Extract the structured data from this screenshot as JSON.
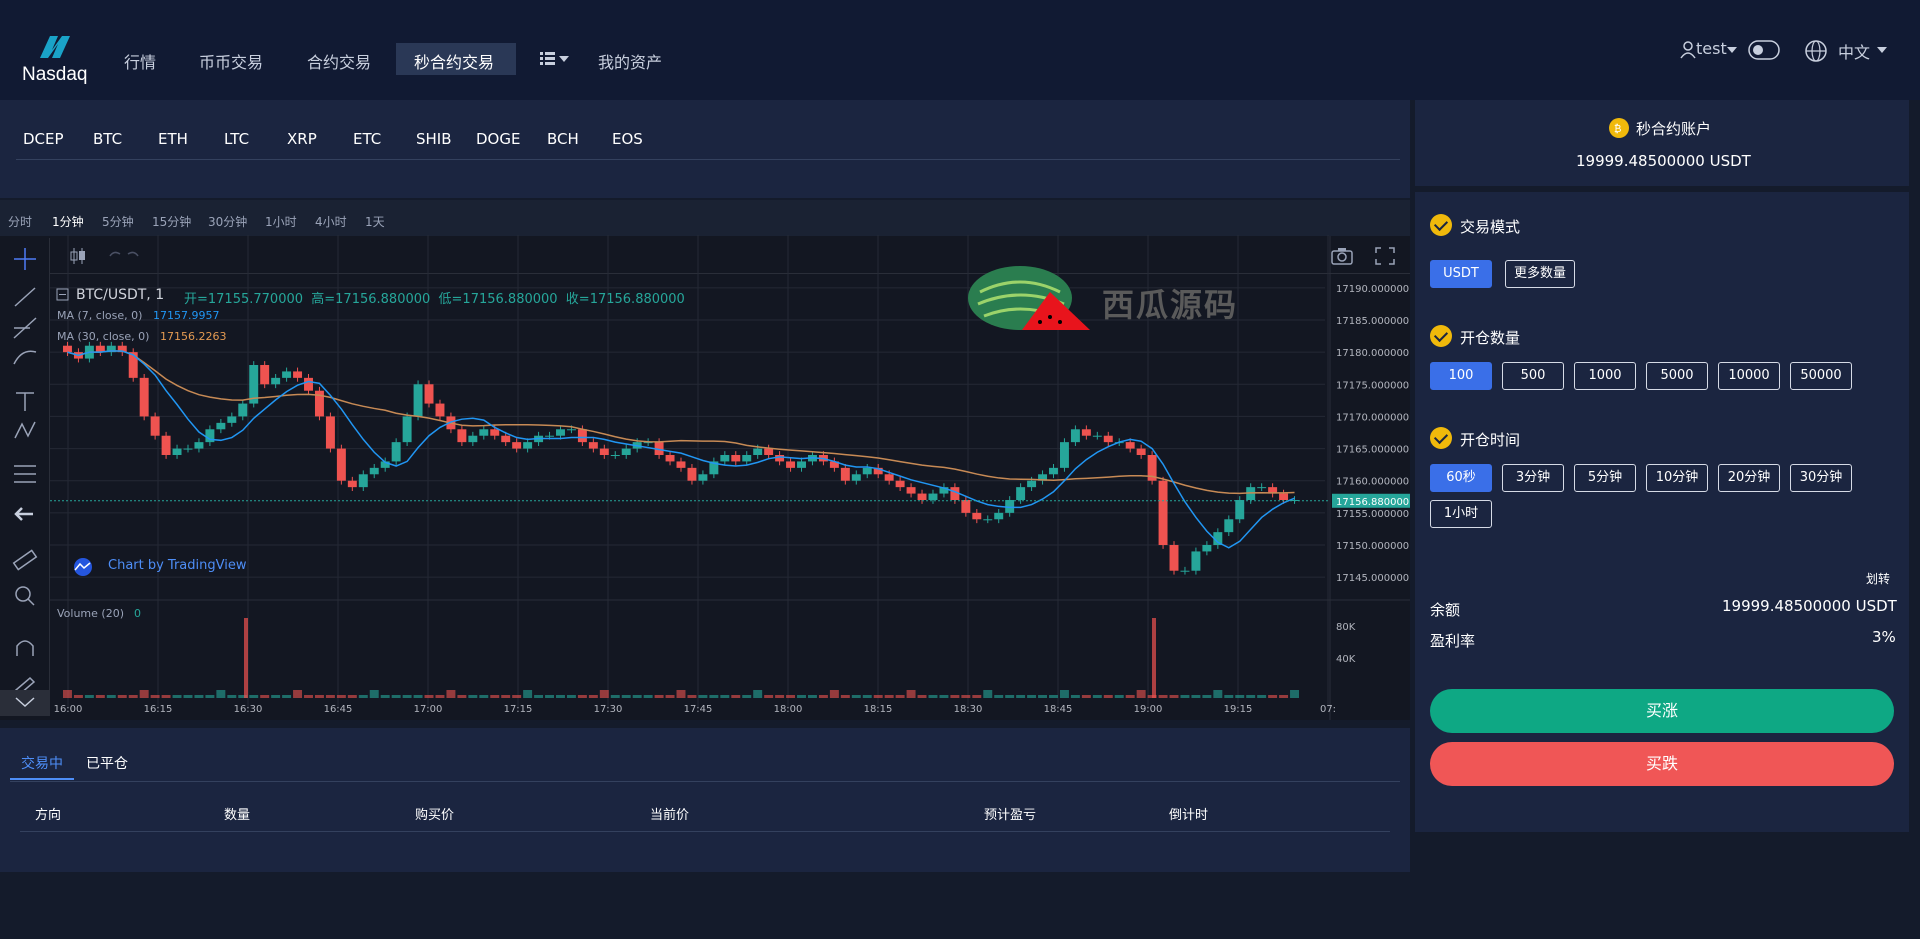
{
  "nav": {
    "logo_text": "Nasdaq",
    "items": [
      "行情",
      "币币交易",
      "合约交易",
      "秒合约交易",
      "我的资产"
    ],
    "user": "test",
    "language": "中文"
  },
  "coins": [
    "DCEP",
    "BTC",
    "ETH",
    "LTC",
    "XRP",
    "ETC",
    "SHIB",
    "DOGE",
    "BCH",
    "EOS"
  ],
  "chart": {
    "intervals": [
      "分时",
      "1分钟",
      "5分钟",
      "15分钟",
      "30分钟",
      "1小时",
      "4小时",
      "1天"
    ],
    "active_interval": "1分钟",
    "symbol": "BTC/USDT, 1",
    "ohlc": "开=17155.770000  高=17156.880000  低=17156.880000  收=17156.880000",
    "ma7_label": "MA (7, close, 0)",
    "ma7_value": "17157.9957",
    "ma30_label": "MA (30, close, 0)",
    "ma30_value": "17156.2263",
    "volume_label": "Volume (20)",
    "volume_value": "0",
    "watermark": "西瓜源码",
    "tv_credit": "Chart by TradingView",
    "current_price": "17156.880000",
    "colors": {
      "up": "#26a69a",
      "down": "#ef5350",
      "ma7": "#2196f3",
      "ma30": "#c78a55"
    }
  },
  "chart_data": {
    "type": "candlestick",
    "title": "BTC/USDT, 1",
    "y_ticks": [
      "17190.000000",
      "17185.000000",
      "17180.000000",
      "17175.000000",
      "17170.000000",
      "17165.000000",
      "17160.000000",
      "17155.000000",
      "17150.000000",
      "17145.000000"
    ],
    "x_ticks": [
      "16:00",
      "16:15",
      "16:30",
      "16:45",
      "17:00",
      "17:15",
      "17:30",
      "17:45",
      "18:00",
      "18:15",
      "18:30",
      "18:45",
      "19:00",
      "19:15",
      "07:"
    ],
    "volume_ticks": [
      "80K",
      "40K"
    ],
    "ylim": [
      17143,
      17192
    ],
    "close": [
      17180,
      17179,
      17181,
      17180,
      17181,
      17180,
      17176,
      17170,
      17167,
      17164,
      17165,
      17165,
      17166,
      17168,
      17169,
      17170,
      17172,
      17178,
      17175,
      17176,
      17177,
      17176,
      17174,
      17170,
      17165,
      17160,
      17159,
      17161,
      17162,
      17163,
      17166,
      17170,
      17175,
      17172,
      17170,
      17168,
      17166,
      17167,
      17168,
      17167,
      17166,
      17165,
      17166,
      17167,
      17167,
      17168,
      17168,
      17166,
      17165,
      17164,
      17164,
      17165,
      17166,
      17166,
      17164,
      17163,
      17162,
      17160,
      17161,
      17163,
      17164,
      17163,
      17164,
      17165,
      17164,
      17163,
      17162,
      17163,
      17164,
      17163,
      17162,
      17160,
      17161,
      17162,
      17161,
      17160,
      17159,
      17158,
      17157,
      17158,
      17159,
      17157,
      17155,
      17154,
      17154,
      17155,
      17157,
      17159,
      17160,
      17161,
      17162,
      17166,
      17168,
      17167,
      17167,
      17166,
      17166,
      17165,
      17164,
      17160,
      17150,
      17146,
      17146,
      17149,
      17150,
      17152,
      17154,
      17157,
      17159,
      17159,
      17158,
      17157,
      17157
    ],
    "volume_spikes": [
      {
        "x": "16:30",
        "v": 100000
      },
      {
        "x": "19:00",
        "v": 100000
      }
    ]
  },
  "account": {
    "title": "秒合约账户",
    "balance_line": "19999.48500000 USDT"
  },
  "trade": {
    "mode_label": "交易模式",
    "modes": [
      "USDT",
      "更多数量"
    ],
    "qty_label": "开仓数量",
    "quantities": [
      "100",
      "500",
      "1000",
      "5000",
      "10000",
      "50000"
    ],
    "time_label": "开仓时间",
    "times": [
      "60秒",
      "3分钟",
      "5分钟",
      "10分钟",
      "20分钟",
      "30分钟",
      "1小时"
    ],
    "transfer": "划转",
    "balance_label": "余额",
    "balance_value": "19999.48500000 USDT",
    "rate_label": "盈利率",
    "rate_value": "3%",
    "buy_up": "买涨",
    "buy_down": "买跌"
  },
  "orders": {
    "tabs": [
      "交易中",
      "已平仓"
    ],
    "headers": [
      "方向",
      "数量",
      "购买价",
      "当前价",
      "预计盈亏",
      "倒计时"
    ]
  }
}
